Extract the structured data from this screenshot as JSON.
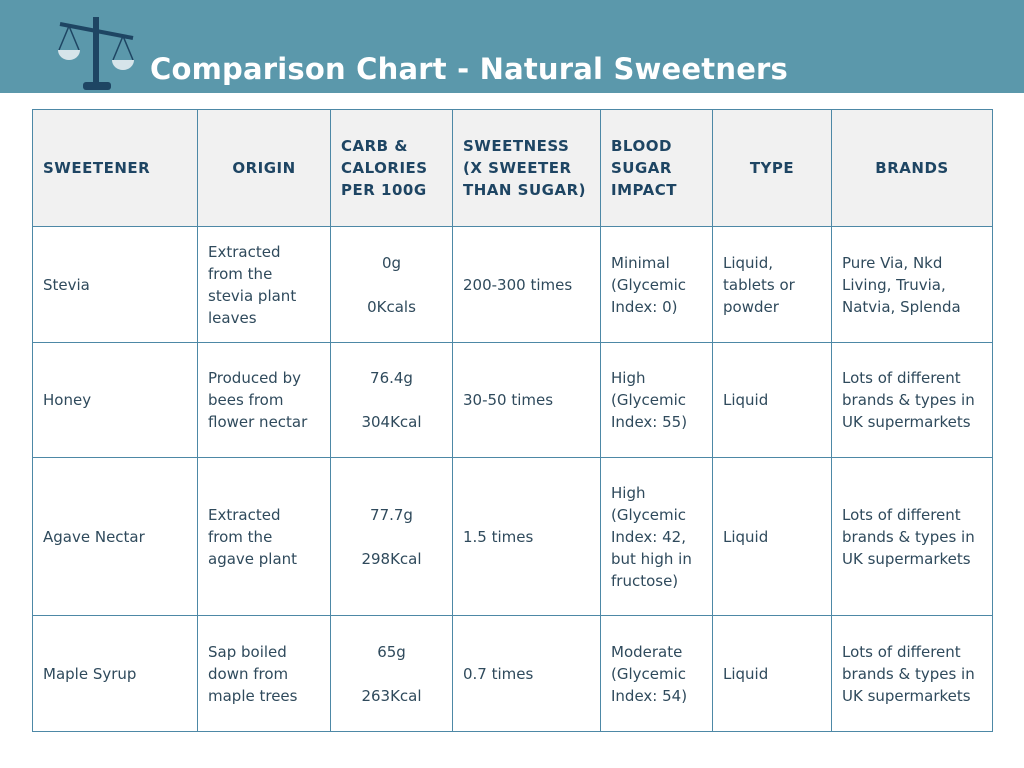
{
  "header": {
    "title": "Comparison Chart - Natural Sweetners"
  },
  "table": {
    "columns": [
      "SWEETENER",
      "ORIGIN",
      "CARB & CALORIES PER 100G",
      "SWEETNESS (X SWEETER THAN SUGAR)",
      "BLOOD SUGAR IMPACT",
      "TYPE",
      "BRANDS"
    ],
    "rows": [
      [
        "Stevia",
        "Extracted from the stevia plant leaves",
        [
          "0g",
          "0Kcals"
        ],
        "200-300 times",
        "Minimal (Glycemic Index: 0)",
        "Liquid, tablets or powder",
        "Pure Via, Nkd Living, Truvia, Natvia, Splenda"
      ],
      [
        "Honey",
        "Produced by bees from flower nectar",
        [
          "76.4g",
          "304Kcal"
        ],
        "30-50 times",
        "High (Glycemic Index: 55)",
        "Liquid",
        "Lots of different brands & types in UK supermarkets"
      ],
      [
        "Agave Nectar",
        "Extracted from the agave plant",
        [
          "77.7g",
          "298Kcal"
        ],
        "1.5 times",
        "High (Glycemic Index: 42, but high in fructose)",
        "Liquid",
        "Lots of different brands & types in UK supermarkets"
      ],
      [
        "Maple Syrup",
        "Sap boiled down from maple trees",
        [
          "65g",
          "263Kcal"
        ],
        "0.7 times",
        "Moderate (Glycemic Index: 54)",
        "Liquid",
        "Lots of different brands & types in UK supermarkets"
      ]
    ]
  }
}
